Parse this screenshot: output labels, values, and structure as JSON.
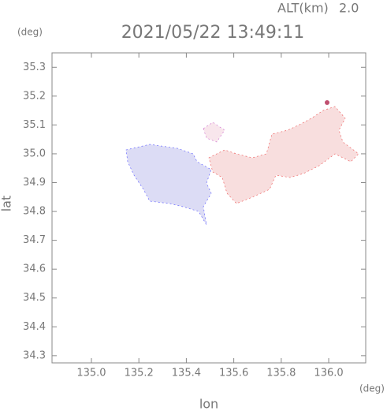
{
  "chart_data": {
    "type": "radar-map",
    "title": "2021/05/22 13:49:11",
    "altitude_label": "ALT(km)",
    "altitude": "2.0",
    "x_label": "lon",
    "y_label": "lat",
    "x_unit": "(deg)",
    "y_unit": "(deg)",
    "xlim": [
      134.834,
      136.156
    ],
    "ylim": [
      34.275,
      35.35
    ],
    "xticks": [
      {
        "value": 135,
        "label": "135.0"
      },
      135.2,
      135.4,
      135.6,
      135.8,
      {
        "value": 136,
        "label": "136.0"
      }
    ],
    "yticks": [
      34.3,
      34.4,
      34.5,
      34.6,
      34.7,
      34.8,
      34.9,
      {
        "value": 35,
        "label": "35.0"
      },
      35.1,
      35.2,
      35.3
    ]
  }
}
